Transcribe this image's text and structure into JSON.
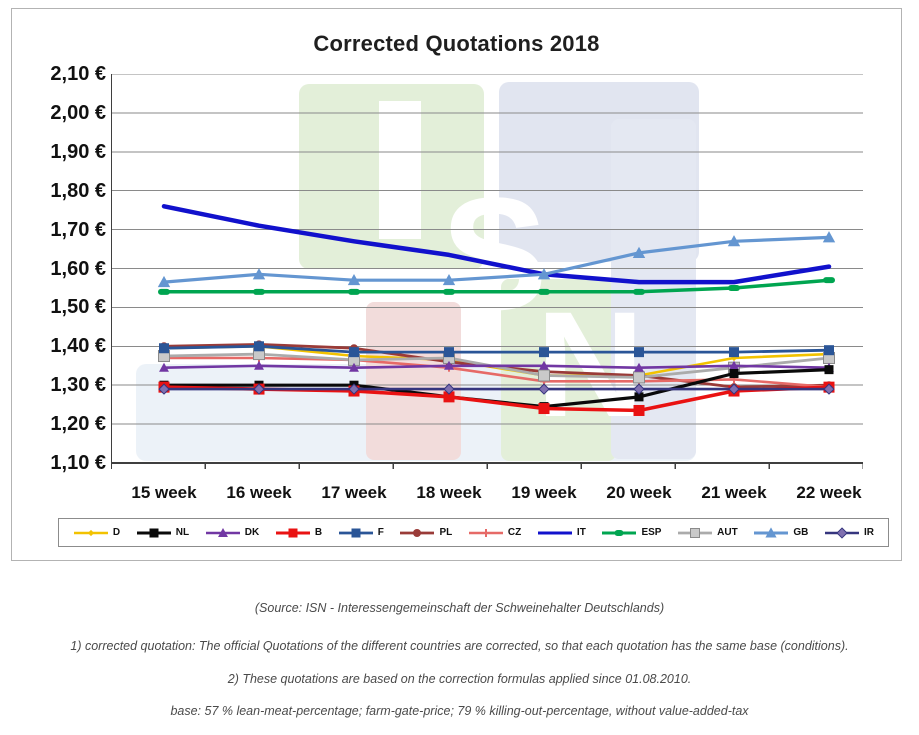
{
  "chart": {
    "title": "Corrected Quotations 2018",
    "y_tick_labels": [
      "2,10 €",
      "2,00 €",
      "1,90 €",
      "1,80 €",
      "1,70 €",
      "1,60 €",
      "1,50 €",
      "1,40 €",
      "1,30 €",
      "1,20 €",
      "1,10 €"
    ],
    "watermark_letters": {
      "s": "S",
      "n": "N"
    }
  },
  "chart_data": {
    "type": "line",
    "title": "Corrected Quotations 2018",
    "categories": [
      "15 week",
      "16 week",
      "17 week",
      "18 week",
      "19 week",
      "20 week",
      "21 week",
      "22 week"
    ],
    "ylim": [
      1.1,
      2.1
    ],
    "ytick_step": 0.1,
    "grid": true,
    "legend_position": "bottom",
    "series": [
      {
        "name": "D",
        "color": "#F2C200",
        "marker": "diamond",
        "marker_size": 5,
        "width": 2.6,
        "values": [
          1.395,
          1.4,
          1.375,
          1.365,
          1.325,
          1.325,
          1.37,
          1.38
        ]
      },
      {
        "name": "NL",
        "color": "#0a0a0a",
        "marker": "square",
        "marker_size": 9,
        "width": 3.2,
        "values": [
          1.3,
          1.3,
          1.3,
          1.27,
          1.245,
          1.27,
          1.33,
          1.34
        ]
      },
      {
        "name": "DK",
        "color": "#7137A3",
        "marker": "triangle",
        "marker_size": 8,
        "width": 2.6,
        "values": [
          1.345,
          1.35,
          1.345,
          1.35,
          1.35,
          1.345,
          1.35,
          1.345
        ]
      },
      {
        "name": "B",
        "color": "#E91212",
        "marker": "square",
        "marker_size": 11,
        "width": 3.5,
        "values": [
          1.295,
          1.29,
          1.285,
          1.27,
          1.24,
          1.235,
          1.285,
          1.295
        ]
      },
      {
        "name": "F",
        "color": "#2A5597",
        "marker": "square",
        "marker_size": 10,
        "width": 2.8,
        "values": [
          1.395,
          1.4,
          1.385,
          1.385,
          1.385,
          1.385,
          1.385,
          1.39
        ]
      },
      {
        "name": "PL",
        "color": "#9A3B38",
        "marker": "circle",
        "marker_size": 8,
        "width": 2.8,
        "values": [
          1.4,
          1.405,
          1.395,
          1.36,
          1.335,
          1.325,
          1.295,
          1.3
        ]
      },
      {
        "name": "CZ",
        "color": "#E66A67",
        "marker": "plus",
        "marker_size": 8,
        "width": 2.6,
        "values": [
          1.37,
          1.37,
          1.365,
          1.345,
          1.31,
          1.31,
          1.315,
          1.295
        ]
      },
      {
        "name": "IT",
        "color": "#1111CC",
        "marker": "none",
        "marker_size": 0,
        "width": 4.5,
        "values": [
          1.76,
          1.71,
          1.67,
          1.635,
          1.585,
          1.565,
          1.565,
          1.605
        ]
      },
      {
        "name": "ESP",
        "color": "#00A550",
        "marker": "dash",
        "marker_size": 12,
        "width": 3.5,
        "values": [
          1.54,
          1.54,
          1.54,
          1.54,
          1.54,
          1.54,
          1.55,
          1.57
        ]
      },
      {
        "name": "AUT",
        "color": "#ABABAB",
        "marker": "square",
        "marker_size": 11,
        "width": 2.8,
        "marker_fill": "#C9C9C9",
        "marker_stroke": "#8a8a8a",
        "values": [
          1.375,
          1.38,
          1.365,
          1.37,
          1.325,
          1.32,
          1.345,
          1.37
        ]
      },
      {
        "name": "GB",
        "color": "#6496D1",
        "marker": "triangle",
        "marker_size": 10,
        "width": 3.2,
        "values": [
          1.565,
          1.585,
          1.57,
          1.57,
          1.585,
          1.64,
          1.67,
          1.68
        ]
      },
      {
        "name": "IR",
        "color": "#35357E",
        "marker": "diamond",
        "marker_size": 8,
        "width": 2.6,
        "marker_fill": "#8070B0",
        "marker_stroke": "#35357E",
        "values": [
          1.29,
          1.29,
          1.29,
          1.29,
          1.29,
          1.29,
          1.29,
          1.29
        ]
      }
    ]
  },
  "footer": {
    "source": "(Source: ISN - Interessengemeinschaft der Schweinehalter Deutschlands)",
    "note1": "1) corrected quotation: The official Quotations of the different countries are corrected, so that each quotation has the same base (conditions).",
    "note2": "2) These quotations are based on the correction formulas applied since 01.08.2010.",
    "note3": "base: 57 % lean-meat-percentage; farm-gate-price; 79 % killing-out-percentage, without value-added-tax"
  }
}
